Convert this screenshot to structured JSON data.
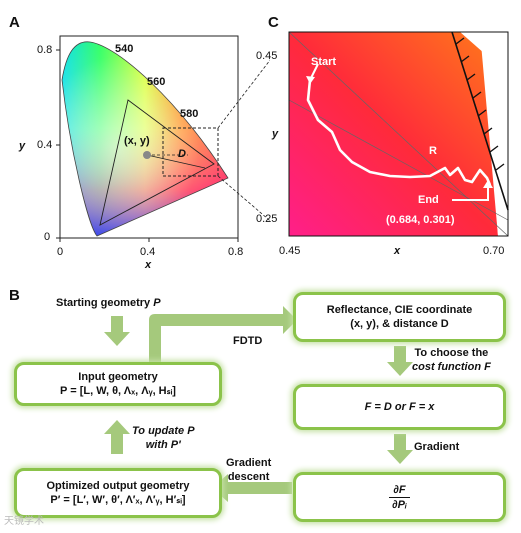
{
  "panels": {
    "a": "A",
    "b": "B",
    "c": "C"
  },
  "chart_a": {
    "type": "diagram",
    "title": "",
    "xlabel": "x",
    "ylabel": "y",
    "xticks": [
      "0",
      "0.4",
      "0.8"
    ],
    "yticks": [
      "0",
      "0.4",
      "0.8"
    ],
    "wavelength_labels": [
      "540",
      "560",
      "580"
    ],
    "point_label": "(x, y)",
    "distance_label": "D"
  },
  "chart_c": {
    "xlabel": "x",
    "ylabel": "y",
    "xticks": [
      "0.45",
      "0.70"
    ],
    "yticks": [
      "0.45",
      "0.25"
    ],
    "start_label": "Start",
    "path_label": "R",
    "end_label": "End",
    "end_coords": "(0.684, 0.301)"
  },
  "flow": {
    "start_text_prefix": "Starting geometry ",
    "start_text_var": "P",
    "input_box": {
      "line1": "Input geometry",
      "line2": "P = [L, W, θ, Λₓ, Λᵧ, Hₛᵢ]"
    },
    "reflect_box": {
      "line1": "Reflectance, CIE coordinate",
      "line2": "(x, y), & distance D"
    },
    "fdtd": "FDTD",
    "choose_note": {
      "line1": "To choose the",
      "line2": "cost function F"
    },
    "cost_box": "F = D or F = x",
    "gradient": "Gradient",
    "deriv_num": "∂F",
    "deriv_den": "∂Pᵢ",
    "grad_descent": {
      "line1": "Gradient",
      "line2": "descent"
    },
    "output_box": {
      "line1": "Optimized output geometry",
      "line2": "P′ = [L′, W′, θ′, Λ′ₓ, Λ′ᵧ, H′ₛᵢ]"
    },
    "update_note": {
      "line1": "To update P",
      "line2": "with P′"
    }
  },
  "watermark": "天镜学术",
  "colors": {
    "box_border": "#8bc34a",
    "arrow": "#a5c97c",
    "glow": "#c5e1a5"
  }
}
